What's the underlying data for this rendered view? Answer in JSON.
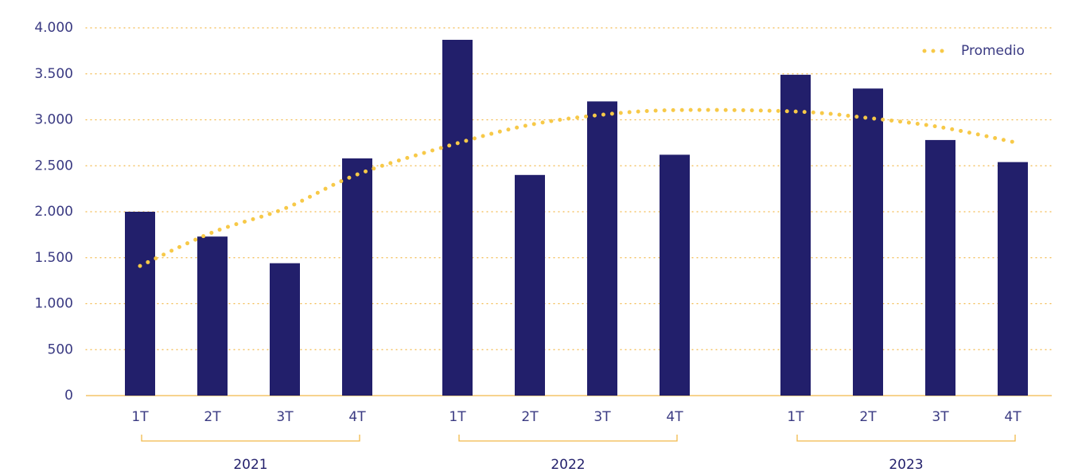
{
  "chart_data": {
    "type": "bar",
    "categories": [
      "1T",
      "2T",
      "3T",
      "4T",
      "1T",
      "2T",
      "3T",
      "4T",
      "1T",
      "2T",
      "3T",
      "4T"
    ],
    "groups": [
      "2021",
      "2022",
      "2023"
    ],
    "values": [
      2000,
      1730,
      1440,
      2580,
      3870,
      2400,
      3200,
      2620,
      3490,
      3340,
      2780,
      2540
    ],
    "color": "#221f6b",
    "trend": {
      "name": "Promedio",
      "color": "#f7c948",
      "values": [
        1410,
        1775,
        2035,
        2405,
        2745,
        2945,
        3055,
        3105,
        3090,
        3020,
        2920,
        2760
      ]
    },
    "ylim": [
      0,
      4000
    ],
    "yticks": [
      0,
      500,
      {
        "value": 1000,
        "label": "1.000"
      },
      {
        "value": 1500,
        "label": "1.500"
      },
      {
        "value": 2000,
        "label": "2.000"
      },
      {
        "value": 2500,
        "label": "2.500"
      },
      {
        "value": 3000,
        "label": "3.000"
      },
      {
        "value": 3500,
        "label": "3.500"
      },
      {
        "value": 4000,
        "label": "4.000"
      }
    ],
    "grid": true,
    "legend": "top-right"
  }
}
